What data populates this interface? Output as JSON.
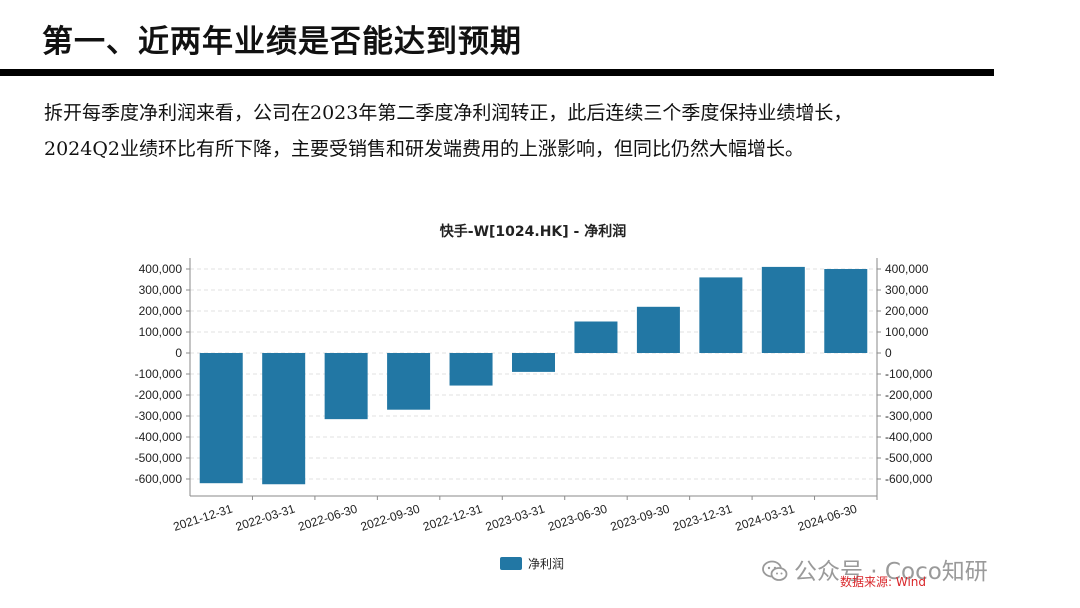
{
  "page": {
    "title": "第一、近两年业绩是否能达到预期",
    "paragraph_lines": [
      "拆开每季度净利润来看，公司在2023年第二季度净利润转正，此后连续三个季度保持业绩增长，",
      "2024Q2业绩环比有所下降，主要受销售和研发端费用的上涨影响，但同比仍然大幅增长。"
    ]
  },
  "chart_data": {
    "type": "bar",
    "title": "快手-W[1024.HK] - 净利润",
    "categories": [
      "2021-12-31",
      "2022-03-31",
      "2022-06-30",
      "2022-09-30",
      "2022-12-31",
      "2023-03-31",
      "2023-06-30",
      "2023-09-30",
      "2023-12-31",
      "2024-03-31",
      "2024-06-30"
    ],
    "series": [
      {
        "name": "净利润",
        "color": "#2277a4",
        "values": [
          -620000,
          -625000,
          -315000,
          -270000,
          -155000,
          -90000,
          150000,
          220000,
          360000,
          410000,
          400000
        ]
      }
    ],
    "ylim": [
      -650000,
      450000
    ],
    "yticks": [
      400000,
      300000,
      200000,
      100000,
      0,
      -100000,
      -200000,
      -300000,
      -400000,
      -500000,
      -600000
    ],
    "ytick_labels": [
      "400,000",
      "300,000",
      "200,000",
      "100,000",
      "0",
      "-100,000",
      "-200,000",
      "-300,000",
      "-400,000",
      "-500,000",
      "-600,000"
    ],
    "xlabel": "",
    "ylabel": "",
    "legend_position": "bottom-center",
    "dual_y_axis": true
  },
  "footer": {
    "watermark": "公众号 · Coco知研",
    "source": "数据来源: Wind"
  },
  "icons": {
    "watermark_icon": "wechat-icon"
  }
}
